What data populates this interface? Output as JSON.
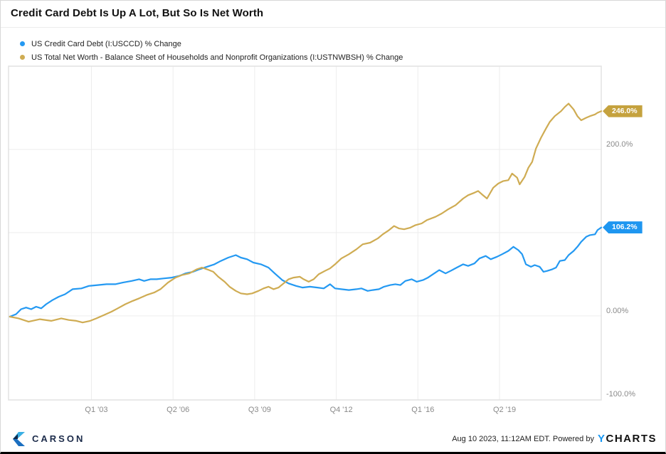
{
  "title": "Credit Card Debt Is Up A Lot, But So Is Net Worth",
  "legend": [
    {
      "label": "US Credit Card Debt (I:USCCD) % Change",
      "color": "#2499F2"
    },
    {
      "label": "US Total Net Worth - Balance Sheet of Households and Nonprofit Organizations (I:USTNWBSH) % Change",
      "color": "#CFAC53"
    }
  ],
  "footer": {
    "brand": "CARSON",
    "timestamp": "Aug 10 2023, 11:12AM EDT. Powered by",
    "ycharts_y": "Y",
    "ycharts_rest": "CHARTS"
  },
  "chart_data": {
    "type": "line",
    "title": "Credit Card Debt Is Up A Lot, But So Is Net Worth",
    "xlabel": "",
    "ylabel": "% Change",
    "grid": true,
    "legend_position": "top-left",
    "x_range": [
      1999.7,
      2023.3
    ],
    "y_range": [
      -101,
      300
    ],
    "x_ticks": [
      {
        "label": "Q1 '03",
        "t": 2003.0
      },
      {
        "label": "Q2 '06",
        "t": 2006.25
      },
      {
        "label": "Q3 '09",
        "t": 2009.5
      },
      {
        "label": "Q4 '12",
        "t": 2012.75
      },
      {
        "label": "Q1 '16",
        "t": 2016.0
      },
      {
        "label": "Q2 '19",
        "t": 2019.25
      }
    ],
    "y_ticks": [
      {
        "label": "200.0%",
        "v": 200
      },
      {
        "label": "0.00%",
        "v": 0
      },
      {
        "label": "-100.0%",
        "v": -100
      }
    ],
    "y_gridlines": [
      200,
      100,
      0
    ],
    "series": [
      {
        "name": "US Credit Card Debt (I:USCCD) % Change",
        "color": "#2499F2",
        "label_bg": "#1E96F0",
        "end_label": "106.2%",
        "points": [
          [
            1999.75,
            -1
          ],
          [
            2000.0,
            2
          ],
          [
            2000.2,
            8
          ],
          [
            2000.4,
            10
          ],
          [
            2000.6,
            8
          ],
          [
            2000.8,
            11
          ],
          [
            2001.0,
            9
          ],
          [
            2001.2,
            14
          ],
          [
            2001.45,
            19
          ],
          [
            2001.7,
            23
          ],
          [
            2001.95,
            26
          ],
          [
            2002.25,
            32
          ],
          [
            2002.6,
            33
          ],
          [
            2002.9,
            36
          ],
          [
            2003.25,
            37
          ],
          [
            2003.6,
            38
          ],
          [
            2003.95,
            38
          ],
          [
            2004.25,
            40
          ],
          [
            2004.6,
            42
          ],
          [
            2004.9,
            44
          ],
          [
            2005.1,
            42
          ],
          [
            2005.35,
            44
          ],
          [
            2005.6,
            44
          ],
          [
            2005.9,
            45
          ],
          [
            2006.2,
            46
          ],
          [
            2006.5,
            48
          ],
          [
            2006.75,
            51
          ],
          [
            2007.05,
            53
          ],
          [
            2007.3,
            56
          ],
          [
            2007.6,
            59
          ],
          [
            2007.9,
            62
          ],
          [
            2008.15,
            66
          ],
          [
            2008.45,
            70
          ],
          [
            2008.75,
            73
          ],
          [
            2008.95,
            70
          ],
          [
            2009.2,
            68
          ],
          [
            2009.45,
            64
          ],
          [
            2009.75,
            62
          ],
          [
            2010.05,
            58
          ],
          [
            2010.3,
            51
          ],
          [
            2010.6,
            43
          ],
          [
            2010.85,
            39
          ],
          [
            2011.15,
            36
          ],
          [
            2011.4,
            34
          ],
          [
            2011.7,
            35
          ],
          [
            2012.0,
            34
          ],
          [
            2012.25,
            33
          ],
          [
            2012.5,
            38
          ],
          [
            2012.7,
            33
          ],
          [
            2012.95,
            32
          ],
          [
            2013.25,
            31
          ],
          [
            2013.55,
            32
          ],
          [
            2013.75,
            33
          ],
          [
            2014.0,
            30
          ],
          [
            2014.2,
            31
          ],
          [
            2014.45,
            32
          ],
          [
            2014.65,
            35
          ],
          [
            2014.9,
            37
          ],
          [
            2015.1,
            38
          ],
          [
            2015.3,
            37
          ],
          [
            2015.5,
            42
          ],
          [
            2015.75,
            44
          ],
          [
            2015.95,
            41
          ],
          [
            2016.2,
            43
          ],
          [
            2016.4,
            46
          ],
          [
            2016.65,
            51
          ],
          [
            2016.85,
            55
          ],
          [
            2017.1,
            51
          ],
          [
            2017.3,
            54
          ],
          [
            2017.55,
            58
          ],
          [
            2017.8,
            62
          ],
          [
            2018.0,
            60
          ],
          [
            2018.25,
            63
          ],
          [
            2018.45,
            69
          ],
          [
            2018.7,
            72
          ],
          [
            2018.9,
            68
          ],
          [
            2019.15,
            71
          ],
          [
            2019.35,
            74
          ],
          [
            2019.6,
            78
          ],
          [
            2019.8,
            83
          ],
          [
            2020.0,
            79
          ],
          [
            2020.15,
            74
          ],
          [
            2020.3,
            62
          ],
          [
            2020.5,
            59
          ],
          [
            2020.65,
            61
          ],
          [
            2020.85,
            59
          ],
          [
            2021.0,
            53
          ],
          [
            2021.15,
            54
          ],
          [
            2021.35,
            56
          ],
          [
            2021.5,
            58
          ],
          [
            2021.65,
            66
          ],
          [
            2021.85,
            67
          ],
          [
            2022.0,
            73
          ],
          [
            2022.2,
            78
          ],
          [
            2022.35,
            83
          ],
          [
            2022.5,
            89
          ],
          [
            2022.7,
            95
          ],
          [
            2022.85,
            97
          ],
          [
            2023.05,
            98
          ],
          [
            2023.15,
            103
          ],
          [
            2023.3,
            106.2
          ]
        ]
      },
      {
        "name": "US Total Net Worth - Balance Sheet of Households and Nonprofit Organizations (I:USTNWBSH) % Change",
        "color": "#CFAC53",
        "label_bg": "#C5A23E",
        "end_label": "246.0%",
        "points": [
          [
            1999.75,
            -1
          ],
          [
            2000.1,
            -3
          ],
          [
            2000.5,
            -7
          ],
          [
            2000.95,
            -4
          ],
          [
            2001.4,
            -6
          ],
          [
            2001.8,
            -3
          ],
          [
            2002.1,
            -5
          ],
          [
            2002.4,
            -6
          ],
          [
            2002.65,
            -8
          ],
          [
            2002.95,
            -6
          ],
          [
            2003.2,
            -3
          ],
          [
            2003.5,
            1
          ],
          [
            2003.8,
            5
          ],
          [
            2004.05,
            9
          ],
          [
            2004.35,
            14
          ],
          [
            2004.65,
            18
          ],
          [
            2004.9,
            21
          ],
          [
            2005.2,
            25
          ],
          [
            2005.5,
            28
          ],
          [
            2005.75,
            32
          ],
          [
            2006.05,
            40
          ],
          [
            2006.35,
            46
          ],
          [
            2006.6,
            49
          ],
          [
            2006.9,
            51
          ],
          [
            2007.2,
            56
          ],
          [
            2007.4,
            58
          ],
          [
            2007.6,
            56
          ],
          [
            2007.85,
            53
          ],
          [
            2008.05,
            47
          ],
          [
            2008.3,
            41
          ],
          [
            2008.5,
            35
          ],
          [
            2008.75,
            30
          ],
          [
            2008.95,
            27
          ],
          [
            2009.2,
            26
          ],
          [
            2009.4,
            27
          ],
          [
            2009.65,
            30
          ],
          [
            2009.85,
            33
          ],
          [
            2010.05,
            35
          ],
          [
            2010.25,
            32
          ],
          [
            2010.45,
            34
          ],
          [
            2010.65,
            39
          ],
          [
            2010.85,
            44
          ],
          [
            2011.05,
            46
          ],
          [
            2011.3,
            47
          ],
          [
            2011.45,
            44
          ],
          [
            2011.65,
            41
          ],
          [
            2011.85,
            44
          ],
          [
            2012.05,
            50
          ],
          [
            2012.3,
            54
          ],
          [
            2012.5,
            57
          ],
          [
            2012.7,
            62
          ],
          [
            2012.95,
            69
          ],
          [
            2013.25,
            74
          ],
          [
            2013.55,
            80
          ],
          [
            2013.8,
            86
          ],
          [
            2014.1,
            88
          ],
          [
            2014.4,
            93
          ],
          [
            2014.6,
            98
          ],
          [
            2014.85,
            103
          ],
          [
            2015.05,
            108
          ],
          [
            2015.25,
            105
          ],
          [
            2015.45,
            104
          ],
          [
            2015.7,
            106
          ],
          [
            2015.9,
            109
          ],
          [
            2016.15,
            111
          ],
          [
            2016.35,
            115
          ],
          [
            2016.7,
            119
          ],
          [
            2016.95,
            123
          ],
          [
            2017.2,
            128
          ],
          [
            2017.5,
            133
          ],
          [
            2017.8,
            141
          ],
          [
            2018.0,
            145
          ],
          [
            2018.25,
            148
          ],
          [
            2018.4,
            150
          ],
          [
            2018.55,
            146
          ],
          [
            2018.75,
            141
          ],
          [
            2019.0,
            154
          ],
          [
            2019.2,
            159
          ],
          [
            2019.4,
            162
          ],
          [
            2019.6,
            163
          ],
          [
            2019.75,
            171
          ],
          [
            2019.95,
            166
          ],
          [
            2020.05,
            158
          ],
          [
            2020.25,
            167
          ],
          [
            2020.4,
            178
          ],
          [
            2020.55,
            185
          ],
          [
            2020.7,
            201
          ],
          [
            2020.9,
            214
          ],
          [
            2021.1,
            225
          ],
          [
            2021.25,
            233
          ],
          [
            2021.45,
            240
          ],
          [
            2021.7,
            246
          ],
          [
            2021.85,
            251
          ],
          [
            2022.0,
            255
          ],
          [
            2022.2,
            248
          ],
          [
            2022.35,
            240
          ],
          [
            2022.5,
            235
          ],
          [
            2022.7,
            238
          ],
          [
            2022.85,
            240
          ],
          [
            2023.05,
            242
          ],
          [
            2023.15,
            244
          ],
          [
            2023.3,
            246
          ]
        ]
      }
    ]
  }
}
